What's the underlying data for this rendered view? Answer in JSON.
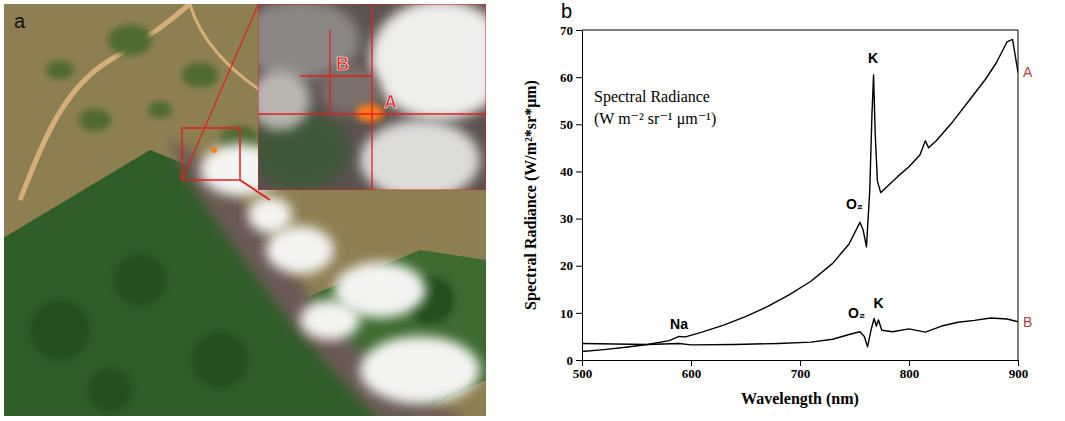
{
  "image_panel": {
    "panel_label": "a",
    "inset_markers": [
      "A",
      "B"
    ]
  },
  "chart_data": {
    "type": "line",
    "panel_label": "b",
    "xlabel": "Wavelength (nm)",
    "ylabel": "Spectral Radiance (W/m²*sr*μm)",
    "note": [
      "Spectral Radiance",
      "(W m⁻² sr⁻¹ μm⁻¹)"
    ],
    "xlim": [
      500,
      900
    ],
    "xticks": [
      500,
      600,
      700,
      800,
      900
    ],
    "ylim": [
      0,
      70
    ],
    "yticks": [
      0,
      10,
      20,
      30,
      40,
      50,
      60,
      70
    ],
    "grid": false,
    "series": [
      {
        "name": "A",
        "color": "#000000",
        "x": [
          500,
          520,
          540,
          560,
          580,
          589,
          595,
          610,
          630,
          650,
          670,
          690,
          710,
          730,
          745,
          755,
          758,
          761,
          764,
          766,
          767.5,
          769,
          771,
          774,
          780,
          790,
          800,
          810,
          815,
          818,
          825,
          840,
          855,
          870,
          880,
          890,
          895,
          900
        ],
        "values": [
          1.8,
          2.2,
          2.7,
          3.3,
          4.1,
          5.0,
          4.9,
          5.9,
          7.4,
          9.2,
          11.3,
          13.8,
          16.7,
          20.5,
          24.6,
          29.2,
          27.5,
          24.0,
          36,
          52,
          60.5,
          48,
          38,
          35.5,
          36.8,
          39,
          41,
          43.5,
          46.5,
          45,
          46.5,
          50.5,
          55,
          59.5,
          63,
          67.5,
          68,
          61
        ]
      },
      {
        "name": "B",
        "color": "#000000",
        "x": [
          500,
          530,
          560,
          589,
          600,
          640,
          680,
          710,
          730,
          745,
          755,
          759,
          762,
          765,
          768,
          770,
          772,
          775,
          785,
          800,
          815,
          830,
          845,
          860,
          875,
          890,
          900
        ],
        "values": [
          3.5,
          3.4,
          3.3,
          3.5,
          3.2,
          3.3,
          3.5,
          3.8,
          4.4,
          5.4,
          6.0,
          5.0,
          2.8,
          6.2,
          8.8,
          7.2,
          8.5,
          6.3,
          6.0,
          6.6,
          5.9,
          7.2,
          8.0,
          8.4,
          8.9,
          8.7,
          8.1
        ]
      }
    ],
    "annotations": [
      {
        "text": "Na",
        "x": 589,
        "y": 6.5
      },
      {
        "text": "O₂",
        "x": 750,
        "y": 32
      },
      {
        "text": "K",
        "x": 767,
        "y": 63
      },
      {
        "text": "O₂",
        "x": 752,
        "y": 9
      },
      {
        "text": "K",
        "x": 772,
        "y": 11
      }
    ]
  }
}
